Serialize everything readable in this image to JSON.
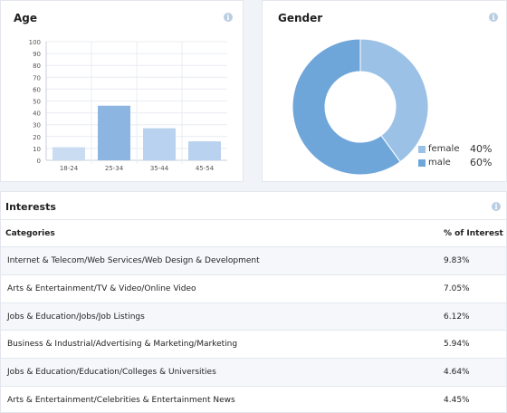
{
  "age": {
    "title": "Age",
    "info_icon": "info-icon",
    "chart_data": {
      "type": "bar",
      "categories": [
        "18-24",
        "25-34",
        "35-44",
        "45-54"
      ],
      "values": [
        11,
        46,
        27,
        16
      ],
      "ylim": [
        0,
        100
      ],
      "yticks": [
        0,
        10,
        20,
        30,
        40,
        50,
        60,
        70,
        80,
        90,
        100
      ],
      "colors": [
        "#c9dcf2",
        "#8db5e2",
        "#b8d2ef",
        "#b8d2ef"
      ],
      "grid": true
    }
  },
  "gender": {
    "title": "Gender",
    "info_icon": "info-icon",
    "chart_data": {
      "type": "pie",
      "categories": [
        "female",
        "male"
      ],
      "values": [
        40,
        60
      ],
      "labels": [
        "40%",
        "60%"
      ],
      "colors": [
        "#9cc1e6",
        "#6fa6da"
      ],
      "legend": "bottom-right"
    }
  },
  "interests": {
    "title": "Interests",
    "info_icon": "info-icon",
    "columns": [
      "Categories",
      "% of Interest"
    ],
    "rows": [
      {
        "category": "Internet & Telecom/Web Services/Web Design & Development",
        "pct": "9.83%"
      },
      {
        "category": "Arts & Entertainment/TV & Video/Online Video",
        "pct": "7.05%"
      },
      {
        "category": "Jobs & Education/Jobs/Job Listings",
        "pct": "6.12%"
      },
      {
        "category": "Business & Industrial/Advertising & Marketing/Marketing",
        "pct": "5.94%"
      },
      {
        "category": "Jobs & Education/Education/Colleges & Universities",
        "pct": "4.64%"
      },
      {
        "category": "Arts & Entertainment/Celebrities & Entertainment News",
        "pct": "4.45%"
      }
    ]
  }
}
